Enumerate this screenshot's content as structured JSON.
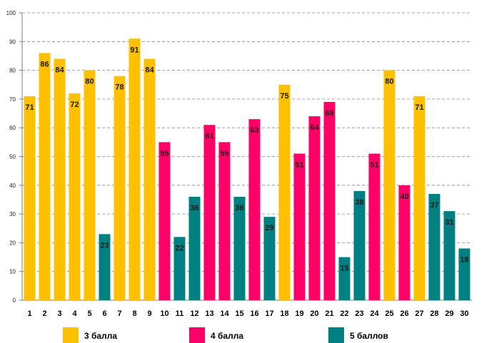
{
  "chart_data": {
    "type": "bar",
    "title": "",
    "xlabel": "",
    "ylabel": "",
    "ylim": [
      0,
      100
    ],
    "y_ticks": [
      0,
      10,
      20,
      30,
      40,
      50,
      60,
      70,
      80,
      90,
      100
    ],
    "grid": true,
    "categories": [
      "1",
      "2",
      "3",
      "4",
      "5",
      "6",
      "7",
      "8",
      "9",
      "10",
      "11",
      "12",
      "13",
      "14",
      "15",
      "16",
      "17",
      "18",
      "19",
      "20",
      "21",
      "22",
      "23",
      "24",
      "25",
      "26",
      "27",
      "28",
      "29",
      "30"
    ],
    "values": [
      71,
      86,
      84,
      72,
      80,
      23,
      78,
      91,
      84,
      55,
      22,
      36,
      61,
      55,
      36,
      63,
      29,
      75,
      51,
      64,
      69,
      15,
      38,
      51,
      80,
      40,
      71,
      37,
      31,
      18
    ],
    "groups": [
      "3",
      "3",
      "3",
      "3",
      "3",
      "5",
      "3",
      "3",
      "3",
      "4",
      "5",
      "5",
      "4",
      "4",
      "5",
      "4",
      "5",
      "3",
      "4",
      "4",
      "4",
      "5",
      "5",
      "4",
      "3",
      "4",
      "3",
      "5",
      "5",
      "5"
    ],
    "legend_position": "bottom",
    "legend": [
      {
        "key": "3",
        "label": "3 балла",
        "color": "#ffc000"
      },
      {
        "key": "4",
        "label": "4 балла",
        "color": "#ff0066"
      },
      {
        "key": "5",
        "label": "5 баллов",
        "color": "#008080"
      }
    ]
  }
}
